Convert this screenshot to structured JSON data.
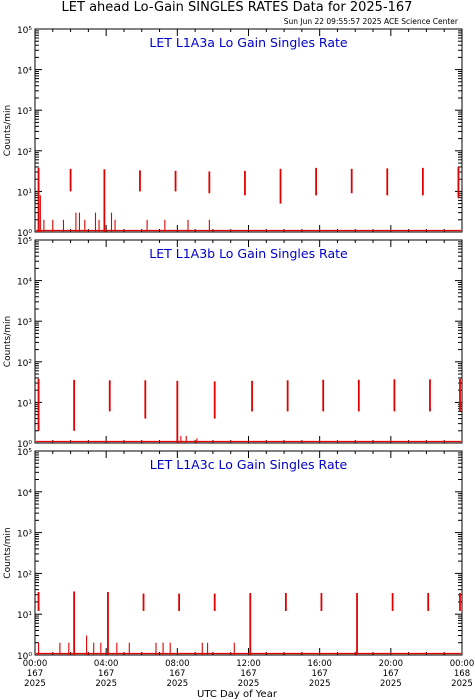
{
  "header": {
    "title": "LET ahead Lo-Gain SINGLES RATES Data for 2025-167",
    "timestamp": "Sun Jun 22 09:55:57 2025 ACE Science Center"
  },
  "colors": {
    "data": "#e00000",
    "panel_title": "#0000cc",
    "axes": "#000000"
  },
  "chart_data": [
    {
      "type": "line",
      "title": "LET L1A3a Lo Gain Singles Rate",
      "ylabel": "Counts/min",
      "y_scale": "log",
      "ylim": [
        1,
        100000
      ],
      "xlim": [
        0,
        24
      ],
      "y_tick_labels": [
        "10⁰",
        "10¹",
        "10²",
        "10³",
        "10⁴",
        "10⁵"
      ],
      "spikes": [
        {
          "x": 0.2,
          "top": 38,
          "bottom": 1
        },
        {
          "x": 2.0,
          "top": 36,
          "bottom": 10
        },
        {
          "x": 3.9,
          "top": 35,
          "bottom": 1
        },
        {
          "x": 5.9,
          "top": 33,
          "bottom": 10
        },
        {
          "x": 7.9,
          "top": 32,
          "bottom": 10
        },
        {
          "x": 9.8,
          "top": 31,
          "bottom": 9
        },
        {
          "x": 11.8,
          "top": 32,
          "bottom": 8
        },
        {
          "x": 13.8,
          "top": 36,
          "bottom": 5
        },
        {
          "x": 15.8,
          "top": 38,
          "bottom": 8
        },
        {
          "x": 17.8,
          "top": 36,
          "bottom": 9
        },
        {
          "x": 19.8,
          "top": 37,
          "bottom": 8
        },
        {
          "x": 21.8,
          "top": 38,
          "bottom": 8
        },
        {
          "x": 23.8,
          "top": 40,
          "bottom": 7
        }
      ],
      "low_marks": [
        {
          "x": 0.3,
          "top": 8
        },
        {
          "x": 0.5,
          "top": 2
        },
        {
          "x": 1.0,
          "top": 2
        },
        {
          "x": 1.6,
          "top": 2
        },
        {
          "x": 2.3,
          "top": 3
        },
        {
          "x": 2.5,
          "top": 3
        },
        {
          "x": 2.8,
          "top": 2
        },
        {
          "x": 3.4,
          "top": 3
        },
        {
          "x": 3.6,
          "top": 2
        },
        {
          "x": 4.3,
          "top": 3
        },
        {
          "x": 4.5,
          "top": 2
        },
        {
          "x": 6.3,
          "top": 2
        },
        {
          "x": 7.3,
          "top": 2
        },
        {
          "x": 8.6,
          "top": 2
        },
        {
          "x": 9.8,
          "top": 2
        }
      ]
    },
    {
      "type": "line",
      "title": "LET L1A3b Lo Gain Singles Rate",
      "ylabel": "Counts/min",
      "y_scale": "log",
      "ylim": [
        1,
        100000
      ],
      "xlim": [
        0,
        24
      ],
      "y_tick_labels": [
        "10⁰",
        "10¹",
        "10²",
        "10³",
        "10⁴",
        "10⁵"
      ],
      "spikes": [
        {
          "x": 0.2,
          "top": 38,
          "bottom": 2
        },
        {
          "x": 2.2,
          "top": 36,
          "bottom": 2
        },
        {
          "x": 4.2,
          "top": 35,
          "bottom": 6
        },
        {
          "x": 6.2,
          "top": 35,
          "bottom": 4
        },
        {
          "x": 8.0,
          "top": 34,
          "bottom": 1
        },
        {
          "x": 10.1,
          "top": 33,
          "bottom": 4
        },
        {
          "x": 12.2,
          "top": 34,
          "bottom": 6
        },
        {
          "x": 14.2,
          "top": 35,
          "bottom": 6
        },
        {
          "x": 16.2,
          "top": 36,
          "bottom": 6
        },
        {
          "x": 18.2,
          "top": 36,
          "bottom": 6
        },
        {
          "x": 20.2,
          "top": 37,
          "bottom": 6
        },
        {
          "x": 22.2,
          "top": 37,
          "bottom": 6
        },
        {
          "x": 24.0,
          "top": 38,
          "bottom": 6
        }
      ],
      "low_marks": [
        {
          "x": 8.2,
          "top": 1.5
        },
        {
          "x": 8.5,
          "top": 1.5
        },
        {
          "x": 9.1,
          "top": 1.3
        }
      ]
    },
    {
      "type": "line",
      "title": "LET L1A3c Lo Gain Singles Rate",
      "ylabel": "Counts/min",
      "y_scale": "log",
      "ylim": [
        1,
        100000
      ],
      "xlim": [
        0,
        24
      ],
      "y_tick_labels": [
        "10⁰",
        "10¹",
        "10²",
        "10³",
        "10⁴",
        "10⁵"
      ],
      "spikes": [
        {
          "x": 0.2,
          "top": 35,
          "bottom": 12
        },
        {
          "x": 2.2,
          "top": 36,
          "bottom": 1
        },
        {
          "x": 4.1,
          "top": 35,
          "bottom": 1
        },
        {
          "x": 6.1,
          "top": 32,
          "bottom": 12
        },
        {
          "x": 8.1,
          "top": 32,
          "bottom": 12
        },
        {
          "x": 10.1,
          "top": 32,
          "bottom": 12
        },
        {
          "x": 12.1,
          "top": 33,
          "bottom": 1
        },
        {
          "x": 14.1,
          "top": 33,
          "bottom": 12
        },
        {
          "x": 16.1,
          "top": 33,
          "bottom": 12
        },
        {
          "x": 18.1,
          "top": 33,
          "bottom": 1
        },
        {
          "x": 20.1,
          "top": 33,
          "bottom": 12
        },
        {
          "x": 22.1,
          "top": 33,
          "bottom": 12
        },
        {
          "x": 24.0,
          "top": 33,
          "bottom": 12
        }
      ],
      "low_marks": [
        {
          "x": 0.2,
          "top": 2
        },
        {
          "x": 1.4,
          "top": 2
        },
        {
          "x": 1.9,
          "top": 2
        },
        {
          "x": 2.9,
          "top": 3
        },
        {
          "x": 3.3,
          "top": 2
        },
        {
          "x": 3.7,
          "top": 2
        },
        {
          "x": 4.6,
          "top": 2
        },
        {
          "x": 5.3,
          "top": 2
        },
        {
          "x": 6.8,
          "top": 2
        },
        {
          "x": 7.2,
          "top": 2
        },
        {
          "x": 7.6,
          "top": 2
        },
        {
          "x": 9.4,
          "top": 2
        },
        {
          "x": 9.7,
          "top": 2
        },
        {
          "x": 11.2,
          "top": 2
        }
      ]
    }
  ],
  "x_axis": {
    "label": "UTC Day of Year",
    "ticks": [
      {
        "x": 0,
        "time": "00:00",
        "doy": "167",
        "year": "2025"
      },
      {
        "x": 4,
        "time": "04:00",
        "doy": "167",
        "year": "2025"
      },
      {
        "x": 8,
        "time": "08:00",
        "doy": "167",
        "year": "2025"
      },
      {
        "x": 12,
        "time": "12:00",
        "doy": "167",
        "year": "2025"
      },
      {
        "x": 16,
        "time": "16:00",
        "doy": "167",
        "year": "2025"
      },
      {
        "x": 20,
        "time": "20:00",
        "doy": "167",
        "year": "2025"
      },
      {
        "x": 24,
        "time": "00:00",
        "doy": "168",
        "year": "2025"
      }
    ]
  }
}
